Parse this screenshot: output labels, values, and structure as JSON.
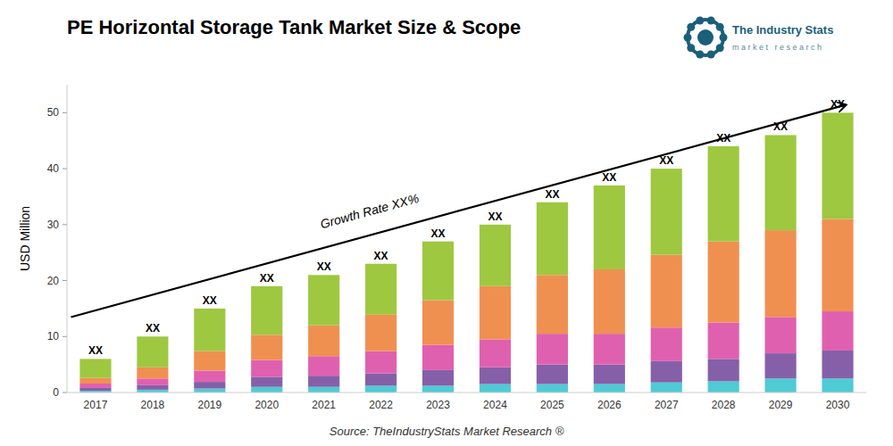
{
  "chart_data": {
    "type": "bar",
    "stacked": true,
    "grid": false,
    "title": "PE Horizontal Storage Tank Market Size & Scope",
    "y_label": "USD Million",
    "source": "Source: TheIndustryStats Market Research ®",
    "growth_label": "Growth Rate XX%",
    "total_label": "XX",
    "logo_title": "The Industry Stats",
    "logo_subtitle": "m a r k e t   r e s e a r c h",
    "categories": [
      "2017",
      "2018",
      "2019",
      "2020",
      "2021",
      "2022",
      "2023",
      "2024",
      "2025",
      "2026",
      "2027",
      "2028",
      "2029",
      "2030"
    ],
    "series": [
      {
        "color": "#4ecbd4",
        "values": [
          0.3,
          0.5,
          0.7,
          1.0,
          1.0,
          1.2,
          1.2,
          1.5,
          1.5,
          1.5,
          1.8,
          2.0,
          2.5,
          2.5
        ]
      },
      {
        "color": "#8560a8",
        "values": [
          0.5,
          0.8,
          1.2,
          1.8,
          2.0,
          2.2,
          2.8,
          3.0,
          3.5,
          3.5,
          3.8,
          4.0,
          4.5,
          5.0
        ]
      },
      {
        "color": "#e060b0",
        "values": [
          0.8,
          1.2,
          2.0,
          3.0,
          3.5,
          4.0,
          4.5,
          5.0,
          5.5,
          5.5,
          6.0,
          6.5,
          6.5,
          7.0
        ]
      },
      {
        "color": "#f09050",
        "values": [
          1.0,
          2.0,
          3.5,
          4.5,
          5.5,
          6.5,
          8.0,
          9.5,
          10.5,
          11.5,
          13.0,
          14.5,
          15.5,
          16.5
        ]
      },
      {
        "color": "#9ec840",
        "values": [
          3.4,
          5.5,
          7.6,
          8.7,
          9.0,
          9.1,
          10.5,
          11.0,
          13.0,
          15.0,
          15.4,
          17.0,
          17.0,
          19.0
        ]
      }
    ],
    "ylim": [
      0,
      55
    ],
    "yticks": [
      0,
      10,
      20,
      30,
      40,
      50
    ]
  }
}
